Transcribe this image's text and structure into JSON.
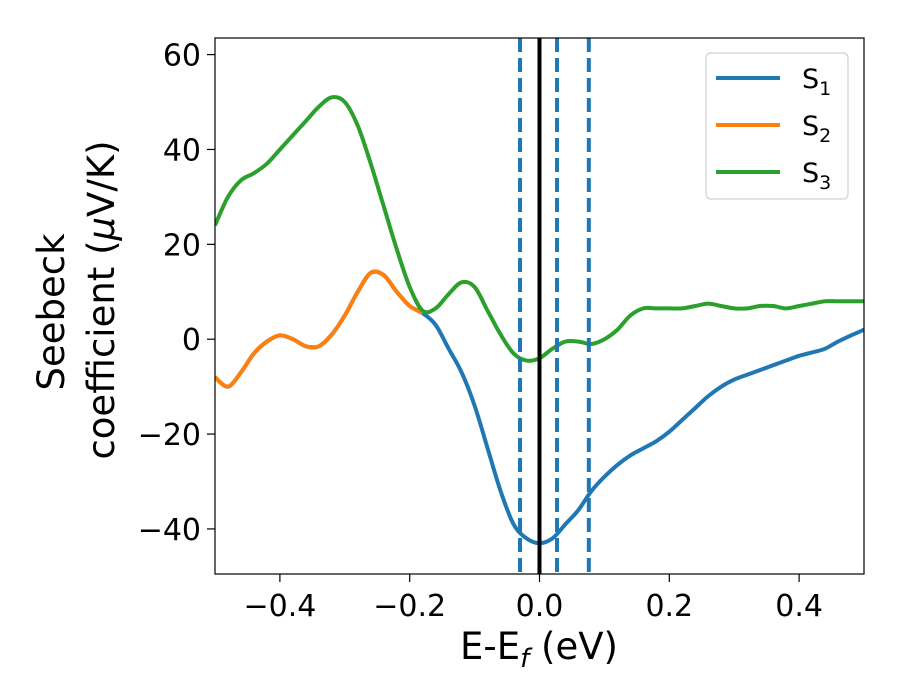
{
  "chart_data": {
    "type": "line",
    "xlabel_main": "E-E",
    "xlabel_sub": "f",
    "xlabel_units": " (eV)",
    "ylabel_line1": "Seebeck",
    "ylabel_line2_prefix": "coefficient  (",
    "ylabel_mu": "μ",
    "ylabel_line2_suffix": "V/K)",
    "xlim": [
      -0.5,
      0.5
    ],
    "ylim": [
      -49.5,
      63.5
    ],
    "x_ticks": [
      -0.4,
      -0.2,
      0.0,
      0.2,
      0.4
    ],
    "x_tick_labels": [
      "−0.4",
      "−0.2",
      "0.0",
      "0.2",
      "0.4"
    ],
    "y_ticks": [
      60,
      40,
      20,
      0,
      -20,
      -40
    ],
    "y_tick_labels": [
      "60",
      "40",
      "20",
      "0",
      "−20",
      "−40"
    ],
    "grid": false,
    "legend_position": "top-right",
    "vertical_lines": [
      {
        "x": 0.0,
        "style": "solid",
        "color": "#000000"
      },
      {
        "x": -0.03,
        "style": "dashed",
        "color": "#1f77b4"
      },
      {
        "x": 0.027,
        "style": "dashed",
        "color": "#1f77b4"
      },
      {
        "x": 0.076,
        "style": "dashed",
        "color": "#1f77b4"
      }
    ],
    "series": [
      {
        "label_main": "S",
        "label_sub": "1",
        "color": "#1f77b4",
        "points": [
          [
            -0.5,
            -8
          ],
          [
            -0.48,
            -10
          ],
          [
            -0.46,
            -7
          ],
          [
            -0.44,
            -3
          ],
          [
            -0.42,
            -0.5
          ],
          [
            -0.4,
            0.8
          ],
          [
            -0.38,
            0
          ],
          [
            -0.36,
            -1.5
          ],
          [
            -0.34,
            -1.5
          ],
          [
            -0.32,
            1
          ],
          [
            -0.3,
            5
          ],
          [
            -0.28,
            10
          ],
          [
            -0.26,
            14
          ],
          [
            -0.24,
            13.5
          ],
          [
            -0.22,
            10
          ],
          [
            -0.2,
            7
          ],
          [
            -0.18,
            5.5
          ],
          [
            -0.16,
            3
          ],
          [
            -0.14,
            -2
          ],
          [
            -0.12,
            -7
          ],
          [
            -0.1,
            -14
          ],
          [
            -0.08,
            -23
          ],
          [
            -0.06,
            -32
          ],
          [
            -0.04,
            -39
          ],
          [
            -0.02,
            -42
          ],
          [
            0.0,
            -43
          ],
          [
            0.02,
            -42
          ],
          [
            0.04,
            -39
          ],
          [
            0.06,
            -36
          ],
          [
            0.08,
            -32
          ],
          [
            0.1,
            -29
          ],
          [
            0.12,
            -26.5
          ],
          [
            0.14,
            -24.5
          ],
          [
            0.16,
            -23
          ],
          [
            0.18,
            -21.5
          ],
          [
            0.2,
            -19.5
          ],
          [
            0.22,
            -17
          ],
          [
            0.24,
            -14.5
          ],
          [
            0.26,
            -12
          ],
          [
            0.28,
            -10
          ],
          [
            0.3,
            -8.5
          ],
          [
            0.32,
            -7.5
          ],
          [
            0.34,
            -6.5
          ],
          [
            0.36,
            -5.5
          ],
          [
            0.38,
            -4.5
          ],
          [
            0.4,
            -3.5
          ],
          [
            0.42,
            -2.8
          ],
          [
            0.44,
            -2
          ],
          [
            0.46,
            -0.5
          ],
          [
            0.48,
            0.8
          ],
          [
            0.5,
            2
          ]
        ]
      },
      {
        "label_main": "S",
        "label_sub": "2",
        "color": "#ff7f0e",
        "points": [
          [
            -0.5,
            -8
          ],
          [
            -0.48,
            -10
          ],
          [
            -0.46,
            -7
          ],
          [
            -0.44,
            -3
          ],
          [
            -0.42,
            -0.5
          ],
          [
            -0.4,
            0.8
          ],
          [
            -0.38,
            0
          ],
          [
            -0.36,
            -1.5
          ],
          [
            -0.34,
            -1.5
          ],
          [
            -0.32,
            1
          ],
          [
            -0.3,
            5
          ],
          [
            -0.28,
            10
          ],
          [
            -0.26,
            14
          ],
          [
            -0.24,
            13.5
          ],
          [
            -0.22,
            10
          ],
          [
            -0.2,
            7
          ],
          [
            -0.18,
            5.5
          ]
        ]
      },
      {
        "label_main": "S",
        "label_sub": "3",
        "color": "#2ca02c",
        "points": [
          [
            -0.5,
            24
          ],
          [
            -0.48,
            30
          ],
          [
            -0.46,
            33.5
          ],
          [
            -0.44,
            35
          ],
          [
            -0.42,
            37
          ],
          [
            -0.4,
            40
          ],
          [
            -0.38,
            43
          ],
          [
            -0.36,
            46
          ],
          [
            -0.34,
            49
          ],
          [
            -0.32,
            51
          ],
          [
            -0.3,
            50
          ],
          [
            -0.28,
            45
          ],
          [
            -0.26,
            37
          ],
          [
            -0.24,
            28
          ],
          [
            -0.22,
            19
          ],
          [
            -0.2,
            11
          ],
          [
            -0.18,
            6
          ],
          [
            -0.16,
            6.5
          ],
          [
            -0.14,
            9.5
          ],
          [
            -0.12,
            12
          ],
          [
            -0.1,
            11
          ],
          [
            -0.08,
            6
          ],
          [
            -0.06,
            1
          ],
          [
            -0.04,
            -3
          ],
          [
            -0.02,
            -4.5
          ],
          [
            0.0,
            -4
          ],
          [
            0.02,
            -2
          ],
          [
            0.04,
            -0.5
          ],
          [
            0.06,
            -0.5
          ],
          [
            0.08,
            -1
          ],
          [
            0.1,
            0
          ],
          [
            0.12,
            2
          ],
          [
            0.14,
            5
          ],
          [
            0.16,
            6.5
          ],
          [
            0.18,
            6.5
          ],
          [
            0.2,
            6.5
          ],
          [
            0.22,
            6.5
          ],
          [
            0.24,
            7
          ],
          [
            0.26,
            7.5
          ],
          [
            0.28,
            7
          ],
          [
            0.3,
            6.5
          ],
          [
            0.32,
            6.5
          ],
          [
            0.34,
            7
          ],
          [
            0.36,
            7
          ],
          [
            0.38,
            6.5
          ],
          [
            0.4,
            7
          ],
          [
            0.42,
            7.5
          ],
          [
            0.44,
            8
          ],
          [
            0.46,
            8
          ],
          [
            0.48,
            8
          ],
          [
            0.5,
            8
          ]
        ]
      }
    ]
  }
}
